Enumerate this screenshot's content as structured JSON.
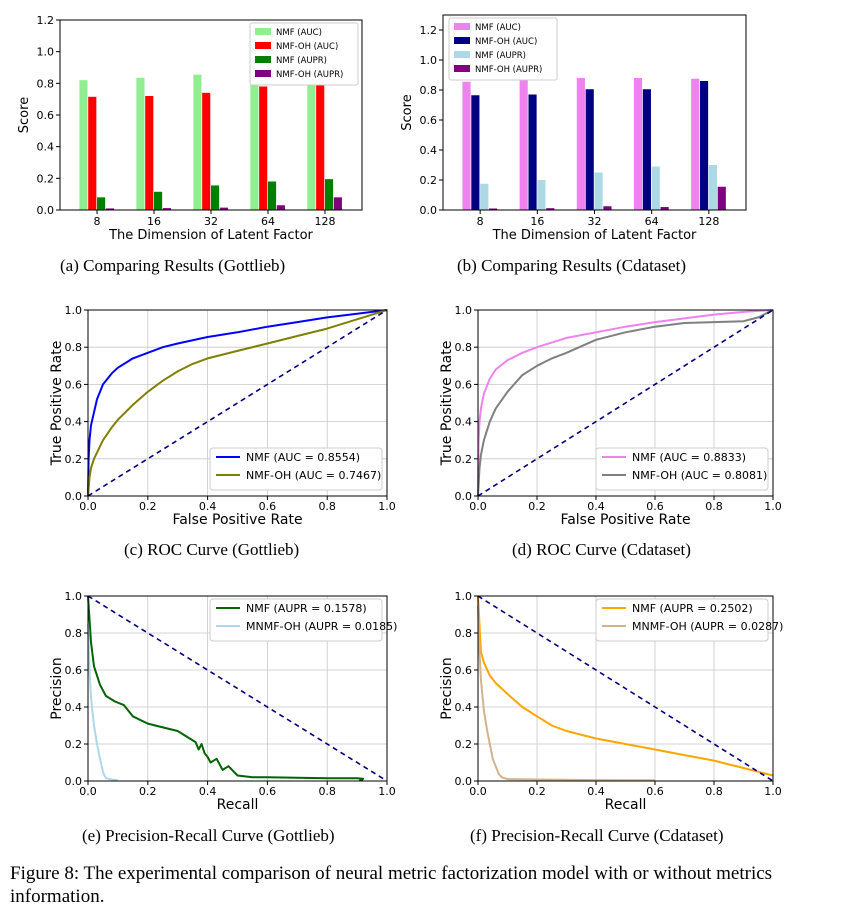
{
  "figure_caption": "Figure 8:  The experimental comparison of neural metric factorization model with or without metrics information.",
  "panels": {
    "a": {
      "caption": "(a)  Comparing Results (Gottlieb)"
    },
    "b": {
      "caption": "(b)  Comparing Results (Cdataset)"
    },
    "c": {
      "caption": "(c)  ROC Curve (Gottlieb)"
    },
    "d": {
      "caption": "(d)  ROC Curve (Cdataset)"
    },
    "e": {
      "caption": "(e)  Precision-Recall Curve (Gottlieb)"
    },
    "f": {
      "caption": "(f)  Precision-Recall Curve (Cdataset)"
    }
  },
  "chart_data": [
    {
      "id": "a",
      "type": "bar",
      "title": "",
      "xlabel": "The Dimension of Latent Factor",
      "ylabel": "Score",
      "categories": [
        "8",
        "16",
        "32",
        "64",
        "128"
      ],
      "ylim": [
        0,
        1.2
      ],
      "yticks": [
        0.0,
        0.2,
        0.4,
        0.6,
        0.8,
        1.0,
        1.2
      ],
      "grid": false,
      "legend": "top-right",
      "series": [
        {
          "name": "NMF (AUC)",
          "color": "#90ee90",
          "values": [
            0.82,
            0.835,
            0.855,
            0.855,
            0.865
          ]
        },
        {
          "name": "NMF-OH (AUC)",
          "color": "#ff0000",
          "values": [
            0.715,
            0.72,
            0.74,
            0.78,
            0.795
          ]
        },
        {
          "name": "NMF (AUPR)",
          "color": "#008000",
          "values": [
            0.08,
            0.115,
            0.155,
            0.18,
            0.195
          ]
        },
        {
          "name": "NMF-OH (AUPR)",
          "color": "#800080",
          "values": [
            0.01,
            0.012,
            0.015,
            0.03,
            0.08
          ]
        }
      ]
    },
    {
      "id": "b",
      "type": "bar",
      "title": "",
      "xlabel": "The Dimension of Latent Factor",
      "ylabel": "Score",
      "categories": [
        "8",
        "16",
        "32",
        "64",
        "128"
      ],
      "ylim": [
        0,
        1.3
      ],
      "yticks": [
        0.0,
        0.2,
        0.4,
        0.6,
        0.8,
        1.0,
        1.2
      ],
      "grid": false,
      "legend": "top-left",
      "series": [
        {
          "name": "NMF (AUC)",
          "color": "#ee82ee",
          "values": [
            0.855,
            0.875,
            0.88,
            0.88,
            0.875
          ]
        },
        {
          "name": "NMF-OH (AUC)",
          "color": "#000080",
          "values": [
            0.765,
            0.77,
            0.805,
            0.805,
            0.86
          ]
        },
        {
          "name": "NMF (AUPR)",
          "color": "#add8e6",
          "values": [
            0.175,
            0.2,
            0.25,
            0.29,
            0.3
          ]
        },
        {
          "name": "NMF-OH (AUPR)",
          "color": "#800080",
          "values": [
            0.01,
            0.012,
            0.025,
            0.02,
            0.155
          ]
        }
      ]
    },
    {
      "id": "c",
      "type": "line",
      "title": "",
      "xlabel": "False Positive Rate",
      "ylabel": "True Positive Rate",
      "xlim": [
        0,
        1
      ],
      "ylim": [
        0,
        1
      ],
      "ticks": [
        0.0,
        0.2,
        0.4,
        0.6,
        0.8,
        1.0
      ],
      "grid": true,
      "legend": "lower-right",
      "series": [
        {
          "name": "NMF (AUC = 0.8554)",
          "color": "#0000ff",
          "x": [
            0,
            0.002,
            0.005,
            0.01,
            0.02,
            0.03,
            0.05,
            0.08,
            0.1,
            0.15,
            0.2,
            0.25,
            0.3,
            0.4,
            0.5,
            0.6,
            0.7,
            0.8,
            0.9,
            0.95,
            1.0
          ],
          "y": [
            0,
            0.2,
            0.3,
            0.38,
            0.45,
            0.52,
            0.6,
            0.66,
            0.69,
            0.74,
            0.77,
            0.8,
            0.82,
            0.855,
            0.88,
            0.91,
            0.935,
            0.96,
            0.98,
            0.99,
            1.0
          ]
        },
        {
          "name": "NMF-OH (AUC = 0.7467)",
          "color": "#808000",
          "x": [
            0,
            0.005,
            0.01,
            0.02,
            0.05,
            0.08,
            0.1,
            0.15,
            0.2,
            0.25,
            0.3,
            0.35,
            0.4,
            0.5,
            0.6,
            0.7,
            0.8,
            0.9,
            1.0
          ],
          "y": [
            0,
            0.1,
            0.15,
            0.2,
            0.3,
            0.37,
            0.41,
            0.49,
            0.56,
            0.62,
            0.67,
            0.71,
            0.74,
            0.78,
            0.82,
            0.86,
            0.9,
            0.95,
            1.0
          ]
        },
        {
          "name": "",
          "color": "#000080",
          "dashed": true,
          "x": [
            0,
            1
          ],
          "y": [
            0,
            1
          ]
        }
      ]
    },
    {
      "id": "d",
      "type": "line",
      "title": "",
      "xlabel": "False Positive Rate",
      "ylabel": "True Positive Rate",
      "xlim": [
        0,
        1
      ],
      "ylim": [
        0,
        1
      ],
      "ticks": [
        0.0,
        0.2,
        0.4,
        0.6,
        0.8,
        1.0
      ],
      "grid": true,
      "legend": "lower-right",
      "series": [
        {
          "name": "NMF (AUC = 0.8833)",
          "color": "#ee82ee",
          "x": [
            0,
            0.002,
            0.005,
            0.01,
            0.02,
            0.04,
            0.06,
            0.1,
            0.15,
            0.2,
            0.3,
            0.4,
            0.5,
            0.6,
            0.7,
            0.8,
            0.9,
            1.0
          ],
          "y": [
            0,
            0.3,
            0.4,
            0.47,
            0.55,
            0.63,
            0.68,
            0.73,
            0.77,
            0.8,
            0.85,
            0.88,
            0.91,
            0.935,
            0.955,
            0.975,
            0.99,
            1.0
          ]
        },
        {
          "name": "NMF-OH (AUC = 0.8081)",
          "color": "#808080",
          "x": [
            0,
            0.005,
            0.01,
            0.02,
            0.04,
            0.06,
            0.1,
            0.15,
            0.2,
            0.25,
            0.3,
            0.4,
            0.5,
            0.6,
            0.7,
            0.8,
            0.9,
            0.95,
            1.0
          ],
          "y": [
            0,
            0.15,
            0.22,
            0.3,
            0.4,
            0.47,
            0.56,
            0.65,
            0.7,
            0.74,
            0.77,
            0.84,
            0.88,
            0.91,
            0.93,
            0.935,
            0.94,
            0.96,
            1.0
          ]
        },
        {
          "name": "",
          "color": "#000080",
          "dashed": true,
          "x": [
            0,
            1
          ],
          "y": [
            0,
            1
          ]
        }
      ]
    },
    {
      "id": "e",
      "type": "line",
      "title": "",
      "xlabel": "Recall",
      "ylabel": "Precision",
      "xlim": [
        0,
        1
      ],
      "ylim": [
        0,
        1
      ],
      "ticks": [
        0.0,
        0.2,
        0.4,
        0.6,
        0.8,
        1.0
      ],
      "grid": true,
      "legend": "top-right",
      "series": [
        {
          "name": "NMF (AUPR = 0.1578)",
          "color": "#006400",
          "x": [
            0,
            0.01,
            0.02,
            0.04,
            0.06,
            0.09,
            0.12,
            0.15,
            0.2,
            0.25,
            0.3,
            0.33,
            0.36,
            0.37,
            0.38,
            0.39,
            0.4,
            0.41,
            0.43,
            0.45,
            0.47,
            0.5,
            0.55,
            0.6,
            0.7,
            0.8,
            0.9,
            0.92,
            0.91,
            0.92
          ],
          "y": [
            1.0,
            0.75,
            0.62,
            0.52,
            0.46,
            0.43,
            0.41,
            0.35,
            0.31,
            0.29,
            0.27,
            0.24,
            0.21,
            0.17,
            0.2,
            0.15,
            0.13,
            0.1,
            0.12,
            0.06,
            0.08,
            0.03,
            0.02,
            0.02,
            0.018,
            0.015,
            0.015,
            0.012,
            0.005,
            0.005
          ]
        },
        {
          "name": "MNMF-OH (AUPR = 0.0185)",
          "color": "#add8e6",
          "x": [
            0,
            0.005,
            0.01,
            0.02,
            0.03,
            0.04,
            0.05,
            0.055,
            0.06,
            0.08,
            0.1
          ],
          "y": [
            0.85,
            0.6,
            0.45,
            0.3,
            0.2,
            0.12,
            0.05,
            0.03,
            0.015,
            0.008,
            0.005
          ]
        },
        {
          "name": "",
          "color": "#000080",
          "dashed": true,
          "x": [
            0,
            1
          ],
          "y": [
            1,
            0
          ]
        }
      ]
    },
    {
      "id": "f",
      "type": "line",
      "title": "",
      "xlabel": "Recall",
      "ylabel": "Precision",
      "xlim": [
        0,
        1
      ],
      "ylim": [
        0,
        1
      ],
      "ticks": [
        0.0,
        0.2,
        0.4,
        0.6,
        0.8,
        1.0
      ],
      "grid": true,
      "legend": "top-right",
      "series": [
        {
          "name": "NMF (AUPR = 0.2502)",
          "color": "#ffa500",
          "x": [
            0,
            0.01,
            0.02,
            0.04,
            0.06,
            0.1,
            0.15,
            0.2,
            0.25,
            0.3,
            0.4,
            0.5,
            0.6,
            0.7,
            0.8,
            0.85,
            0.9,
            0.95,
            1.0
          ],
          "y": [
            1.0,
            0.7,
            0.64,
            0.57,
            0.53,
            0.47,
            0.4,
            0.35,
            0.3,
            0.27,
            0.23,
            0.2,
            0.17,
            0.14,
            0.11,
            0.09,
            0.07,
            0.05,
            0.03
          ]
        },
        {
          "name": "MNMF-OH (AUPR = 0.0287)",
          "color": "#d2b48c",
          "x": [
            0,
            0.005,
            0.01,
            0.02,
            0.03,
            0.04,
            0.05,
            0.06,
            0.07,
            0.08,
            0.1,
            0.2,
            0.4,
            0.6
          ],
          "y": [
            0.95,
            0.7,
            0.55,
            0.38,
            0.28,
            0.2,
            0.12,
            0.08,
            0.04,
            0.02,
            0.01,
            0.008,
            0.005,
            0.004
          ]
        },
        {
          "name": "",
          "color": "#000080",
          "dashed": true,
          "x": [
            0,
            1
          ],
          "y": [
            1,
            0
          ]
        }
      ]
    }
  ]
}
